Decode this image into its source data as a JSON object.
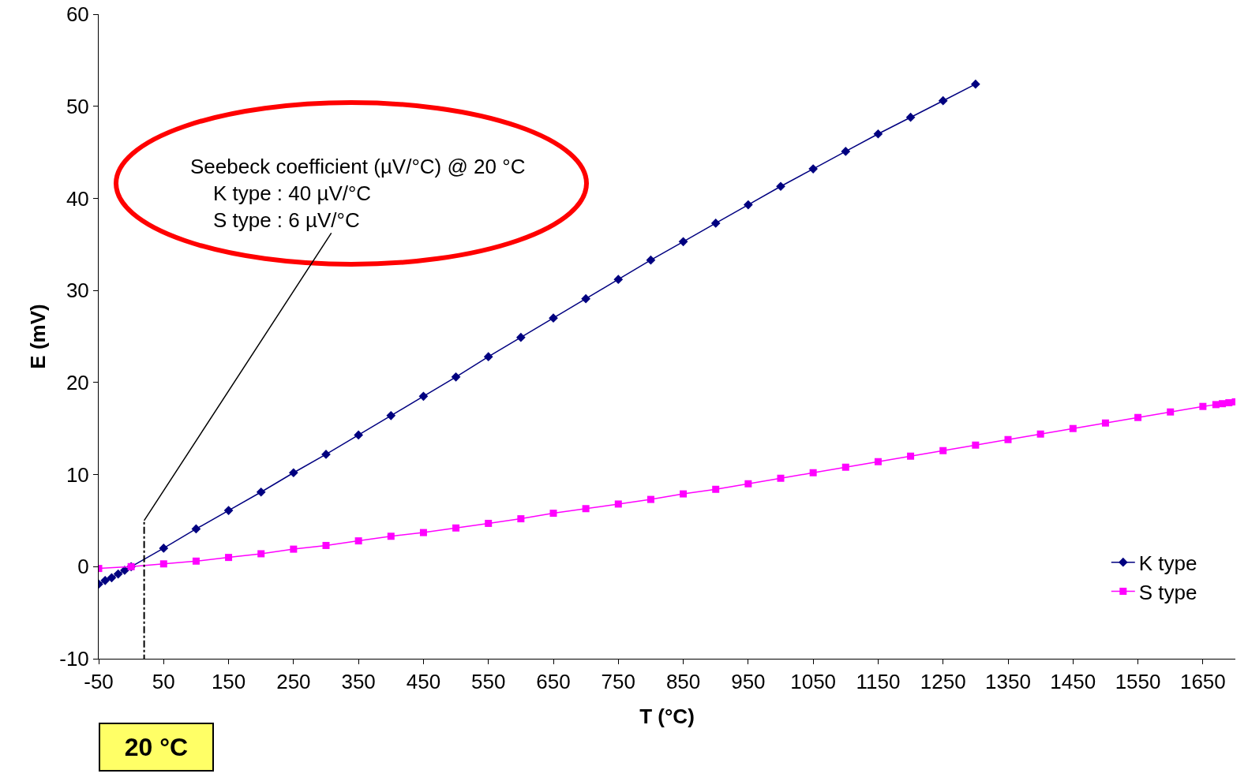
{
  "chart_data": {
    "type": "line",
    "xlabel": "T (°C)",
    "ylabel": "E (mV)",
    "xlim": [
      -50,
      1700
    ],
    "xticks": [
      -50,
      50,
      150,
      250,
      350,
      450,
      550,
      650,
      750,
      850,
      950,
      1050,
      1150,
      1250,
      1350,
      1450,
      1550,
      1650
    ],
    "ylim": [
      -10,
      60
    ],
    "yticks": [
      -10,
      0,
      10,
      20,
      30,
      40,
      50,
      60
    ],
    "legend": "bottom right",
    "series": [
      {
        "name": "K type",
        "color": "#000080",
        "marker": "diamond",
        "x": [
          -50,
          -40,
          -30,
          -20,
          -10,
          0,
          50,
          100,
          150,
          200,
          250,
          300,
          350,
          400,
          450,
          500,
          550,
          600,
          650,
          700,
          750,
          800,
          850,
          900,
          950,
          1000,
          1050,
          1100,
          1150,
          1200,
          1250,
          1300
        ],
        "values": [
          -1.9,
          -1.5,
          -1.2,
          -0.8,
          -0.4,
          0,
          2.0,
          4.1,
          6.1,
          8.1,
          10.2,
          12.2,
          14.3,
          16.4,
          18.5,
          20.6,
          22.8,
          24.9,
          27.0,
          29.1,
          31.2,
          33.3,
          35.3,
          37.3,
          39.3,
          41.3,
          43.2,
          45.1,
          47.0,
          48.8,
          50.6,
          52.4
        ]
      },
      {
        "name": "S type",
        "color": "#ff00ff",
        "marker": "square",
        "x": [
          -50,
          0,
          50,
          100,
          150,
          200,
          250,
          300,
          350,
          400,
          450,
          500,
          550,
          600,
          650,
          700,
          750,
          800,
          850,
          900,
          950,
          1000,
          1050,
          1100,
          1150,
          1200,
          1250,
          1300,
          1350,
          1400,
          1450,
          1500,
          1550,
          1600,
          1650,
          1670,
          1680,
          1690,
          1700
        ],
        "values": [
          -0.2,
          0,
          0.3,
          0.6,
          1.0,
          1.4,
          1.9,
          2.3,
          2.8,
          3.3,
          3.7,
          4.2,
          4.7,
          5.2,
          5.8,
          6.3,
          6.8,
          7.3,
          7.9,
          8.4,
          9.0,
          9.6,
          10.2,
          10.8,
          11.4,
          12.0,
          12.6,
          13.2,
          13.8,
          14.4,
          15.0,
          15.6,
          16.2,
          16.8,
          17.4,
          17.6,
          17.7,
          17.8,
          17.9
        ]
      }
    ],
    "annotations": [
      {
        "text": "Seebeck coefficient (µV/°C) @ 20 °C\n    K type : 40 µV/°C\n    S type : 6 µV/°C",
        "x": 20,
        "y": 5
      }
    ],
    "ref_lines": [
      {
        "axis": "x",
        "value": 20,
        "label": "20 °C",
        "line_style": "dashdot",
        "color": "#000000"
      }
    ]
  }
}
